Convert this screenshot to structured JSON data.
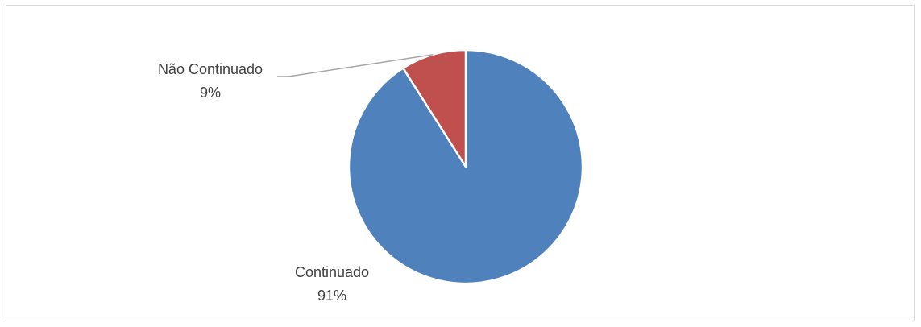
{
  "chart_data": {
    "type": "pie",
    "title": "",
    "slices": [
      {
        "label": "Continuado",
        "value": 91,
        "value_label": "91%",
        "color": "#4f81bd"
      },
      {
        "label": "Não Continuado",
        "value": 9,
        "value_label": "9%",
        "color": "#c0504d"
      }
    ],
    "legend": "none",
    "data_labels": "category and percentage"
  }
}
